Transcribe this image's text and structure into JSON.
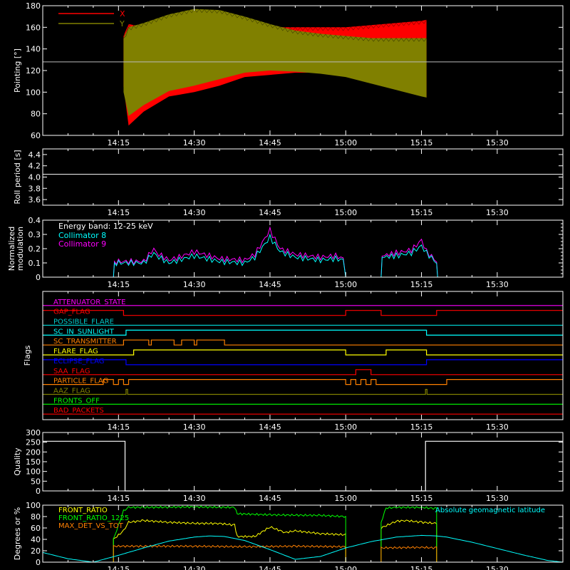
{
  "x_axis": {
    "tick_labels": [
      "14:15",
      "14:30",
      "14:45",
      "15:00",
      "15:15",
      "15:30"
    ],
    "tick_values_min": [
      15,
      30,
      45,
      60,
      75,
      90
    ],
    "range_min": [
      0,
      103
    ]
  },
  "chart_data": [
    {
      "id": "pointing",
      "type": "area",
      "ylabel": "Pointing [°]",
      "ylim": [
        60,
        180
      ],
      "y_ticks": [
        60,
        80,
        100,
        120,
        140,
        160,
        180
      ],
      "legend": [
        "X",
        "Y"
      ],
      "reference_line": 128,
      "series": [
        {
          "name": "X",
          "color": "#ff0000",
          "x": [
            16,
            17,
            20,
            25,
            30,
            35,
            40,
            45,
            50,
            55,
            60,
            65,
            70,
            75,
            76
          ],
          "upper": [
            152,
            163,
            160,
            166,
            170,
            168,
            162,
            160,
            160,
            160,
            160,
            162,
            164,
            166,
            167
          ],
          "lower": [
            105,
            69,
            82,
            96,
            100,
            106,
            114,
            116,
            118,
            118,
            116,
            110,
            104,
            98,
            95
          ]
        },
        {
          "name": "Y",
          "color": "#808000",
          "x": [
            16,
            17,
            20,
            25,
            30,
            35,
            40,
            45,
            50,
            55,
            60,
            65,
            70,
            75,
            76
          ],
          "upper": [
            150,
            160,
            164,
            172,
            177,
            176,
            170,
            163,
            157,
            154,
            152,
            150,
            150,
            150,
            150
          ],
          "lower": [
            100,
            78,
            88,
            101,
            106,
            112,
            118,
            120,
            119,
            117,
            114,
            108,
            102,
            96,
            95
          ]
        }
      ]
    },
    {
      "id": "roll",
      "type": "line",
      "ylabel": "Roll period [s]",
      "ylim": [
        3.5,
        4.5
      ],
      "y_ticks": [
        3.6,
        3.8,
        4.0,
        4.2,
        4.4
      ],
      "y_tick_labels": [
        "3.6",
        "3.8",
        "4.0",
        "4.2",
        "4.4"
      ],
      "series": [
        {
          "name": "Roll period",
          "color": "#ffffff",
          "x": [
            0,
            103
          ],
          "y": [
            4.05,
            4.05
          ]
        }
      ]
    },
    {
      "id": "modulation",
      "type": "line",
      "ylabel": "Normalized modulation",
      "ylim": [
        0,
        0.4
      ],
      "y_ticks": [
        0,
        0.1,
        0.2,
        0.3,
        0.4
      ],
      "y_tick_labels": [
        "0",
        "0.1",
        "0.2",
        "0.3",
        "0.4"
      ],
      "annotation": "Energy band: 12-25 keV",
      "legend": [
        "Collimator 8",
        "Collimator 9"
      ],
      "series": [
        {
          "name": "Collimator 8",
          "color": "#00ffff",
          "x": [
            0,
            14,
            14.2,
            15,
            20,
            22,
            22.5,
            25,
            27,
            30,
            35,
            40,
            42,
            45,
            47,
            50,
            55,
            58,
            59.5,
            60,
            67,
            67.2,
            70,
            73,
            75,
            76,
            78,
            78.2,
            103
          ],
          "y": [
            0,
            0,
            0.09,
            0.1,
            0.1,
            0.17,
            0.15,
            0.1,
            0.12,
            0.15,
            0.11,
            0.1,
            0.14,
            0.28,
            0.18,
            0.14,
            0.12,
            0.13,
            0.12,
            0,
            0,
            0.14,
            0.15,
            0.17,
            0.22,
            0.17,
            0.1,
            0,
            0
          ]
        },
        {
          "name": "Collimator 9",
          "color": "#ff00ff",
          "x": [
            0,
            14,
            14.2,
            15,
            20,
            22,
            22.5,
            25,
            27,
            30,
            35,
            40,
            42,
            45,
            47,
            50,
            55,
            58,
            59.5,
            60,
            67,
            67.2,
            70,
            73,
            75,
            76,
            78,
            78.2,
            103
          ],
          "y": [
            0,
            0,
            0.1,
            0.11,
            0.11,
            0.2,
            0.17,
            0.12,
            0.14,
            0.18,
            0.13,
            0.12,
            0.16,
            0.33,
            0.2,
            0.16,
            0.14,
            0.15,
            0.13,
            0,
            0,
            0.15,
            0.17,
            0.19,
            0.26,
            0.18,
            0.11,
            0,
            0
          ]
        }
      ]
    },
    {
      "id": "flags",
      "type": "line",
      "ylabel": "Flags",
      "rows": [
        {
          "label": "ATTENUATOR_STATE",
          "color": "#ff00ff",
          "x": [
            0,
            103
          ],
          "state": [
            0,
            0
          ]
        },
        {
          "label": "GAP_FLAG",
          "color": "#ff0000",
          "x": [
            0,
            16,
            16,
            60,
            60,
            67,
            67,
            78,
            78,
            103
          ],
          "state": [
            1,
            1,
            0,
            0,
            1,
            1,
            0,
            0,
            1,
            1
          ]
        },
        {
          "label": "POSSIBLE_FLARE",
          "color": "#00cccc",
          "x": [
            0,
            103
          ],
          "state": [
            0,
            0
          ]
        },
        {
          "label": "SC_IN_SUNLIGHT",
          "color": "#00ffff",
          "x": [
            0,
            16.5,
            16.5,
            76,
            76,
            103
          ],
          "state": [
            0,
            0,
            1,
            1,
            0,
            0
          ]
        },
        {
          "label": "SC_TRANSMITTER",
          "color": "#ff8000",
          "x": [
            0,
            16,
            16,
            21,
            21,
            21.5,
            21.5,
            26,
            26,
            27.5,
            27.5,
            30,
            30,
            30.5,
            30.5,
            36,
            36,
            103
          ],
          "state": [
            0,
            0,
            1,
            1,
            0,
            0,
            1,
            1,
            0,
            0,
            1,
            1,
            0,
            0,
            1,
            1,
            0,
            0
          ]
        },
        {
          "label": "FLARE_FLAG",
          "color": "#ffff00",
          "x": [
            0,
            18,
            18,
            60,
            60,
            68,
            68,
            76,
            76,
            103
          ],
          "state": [
            0,
            0,
            1,
            1,
            0,
            0,
            1,
            1,
            0,
            0
          ]
        },
        {
          "label": "ECLIPSE_FLAG",
          "color": "#0000ff",
          "x": [
            0,
            16.5,
            16.5,
            76,
            76,
            103
          ],
          "state": [
            1,
            1,
            0,
            0,
            1,
            1
          ]
        },
        {
          "label": "SAA_FLAG",
          "color": "#ff0000",
          "x": [
            0,
            62,
            62,
            65,
            65,
            103
          ],
          "state": [
            0,
            0,
            1,
            1,
            0,
            0
          ]
        },
        {
          "label": "PARTICLE_FLAG",
          "color": "#ff8000",
          "x": [
            0,
            12,
            12,
            14,
            14,
            15,
            15,
            16,
            16,
            17,
            17,
            60,
            60,
            61,
            61,
            62,
            62,
            63,
            63,
            64,
            64,
            65,
            65,
            66,
            66,
            80,
            80,
            103
          ],
          "state": [
            0,
            0,
            1,
            1,
            0,
            0,
            1,
            1,
            0,
            0,
            1,
            1,
            0,
            0,
            1,
            1,
            0,
            0,
            1,
            1,
            0,
            0,
            1,
            1,
            0,
            0,
            1,
            1
          ]
        },
        {
          "label": "AAZ_FLAG",
          "color": "#808000",
          "x": [
            0,
            16.5,
            16.5,
            16.8,
            16.8,
            75.8,
            75.8,
            76.1,
            76.1,
            103
          ],
          "state": [
            0,
            0,
            1,
            1,
            0,
            0,
            1,
            1,
            0,
            0
          ]
        },
        {
          "label": "FRONTS_OFF",
          "color": "#00ff00",
          "x": [
            0,
            103
          ],
          "state": [
            0,
            0
          ]
        },
        {
          "label": "BAD_PACKETS",
          "color": "#ff0000",
          "x": [
            0,
            103
          ],
          "state": [
            0,
            0
          ]
        }
      ]
    },
    {
      "id": "quality",
      "type": "line",
      "ylabel": "Quality",
      "ylim": [
        0,
        300
      ],
      "y_ticks": [
        0,
        50,
        100,
        150,
        200,
        250,
        300
      ],
      "series": [
        {
          "name": "Quality",
          "color": "#ffffff",
          "x": [
            0,
            16.3,
            16.3,
            75.8,
            75.8,
            103
          ],
          "y": [
            255,
            255,
            0,
            0,
            255,
            255
          ]
        }
      ]
    },
    {
      "id": "ratios",
      "type": "line",
      "ylabel": "Degrees or %",
      "ylim": [
        0,
        100
      ],
      "y_ticks": [
        0,
        20,
        40,
        60,
        80,
        100
      ],
      "legend": [
        "FRONT_RATIO",
        "FRONT_RATIO_1225",
        "MAX_DET_VS_TOT"
      ],
      "right_label": "Absolute geomagnetic latitude",
      "series": [
        {
          "name": "FRONT_RATIO",
          "color": "#ffff00",
          "x": [
            0,
            14,
            14,
            16,
            17,
            20,
            25,
            30,
            35,
            38,
            38.5,
            42,
            45,
            48,
            50,
            55,
            60,
            60,
            67,
            67,
            70,
            72,
            75,
            78,
            78,
            103
          ],
          "y": [
            0,
            0,
            40,
            55,
            70,
            73,
            70,
            68,
            68,
            65,
            45,
            45,
            62,
            52,
            55,
            50,
            48,
            0,
            0,
            60,
            72,
            73,
            70,
            68,
            0,
            0
          ]
        },
        {
          "name": "FRONT_RATIO_1225",
          "color": "#00ff00",
          "x": [
            0,
            14,
            14,
            16,
            17,
            20,
            30,
            38,
            38.5,
            45,
            55,
            60,
            60,
            67,
            67,
            68,
            70,
            75,
            78,
            78,
            103
          ],
          "y": [
            0,
            0,
            40,
            90,
            96,
            96,
            97,
            96,
            85,
            83,
            82,
            80,
            0,
            0,
            70,
            95,
            96,
            96,
            94,
            0,
            0
          ]
        },
        {
          "name": "MAX_DET_VS_TOT",
          "color": "#ff8000",
          "x": [
            0,
            14,
            14,
            20,
            30,
            40,
            50,
            60,
            60,
            67,
            67,
            75,
            78,
            78,
            103
          ],
          "y": [
            0,
            0,
            28,
            28,
            28,
            27,
            28,
            27,
            0,
            0,
            25,
            26,
            25,
            0,
            0
          ]
        },
        {
          "name": "Absolute geomagnetic latitude",
          "color": "#00ffff",
          "x": [
            0,
            5,
            10,
            15,
            20,
            25,
            30,
            33,
            36,
            40,
            45,
            50,
            55,
            60,
            65,
            70,
            75,
            78,
            80,
            85,
            90,
            95,
            100,
            103
          ],
          "y": [
            17,
            6,
            0,
            12,
            25,
            37,
            44,
            46,
            45,
            38,
            22,
            5,
            10,
            25,
            36,
            44,
            47,
            46,
            44,
            35,
            24,
            13,
            3,
            0
          ]
        }
      ]
    }
  ]
}
